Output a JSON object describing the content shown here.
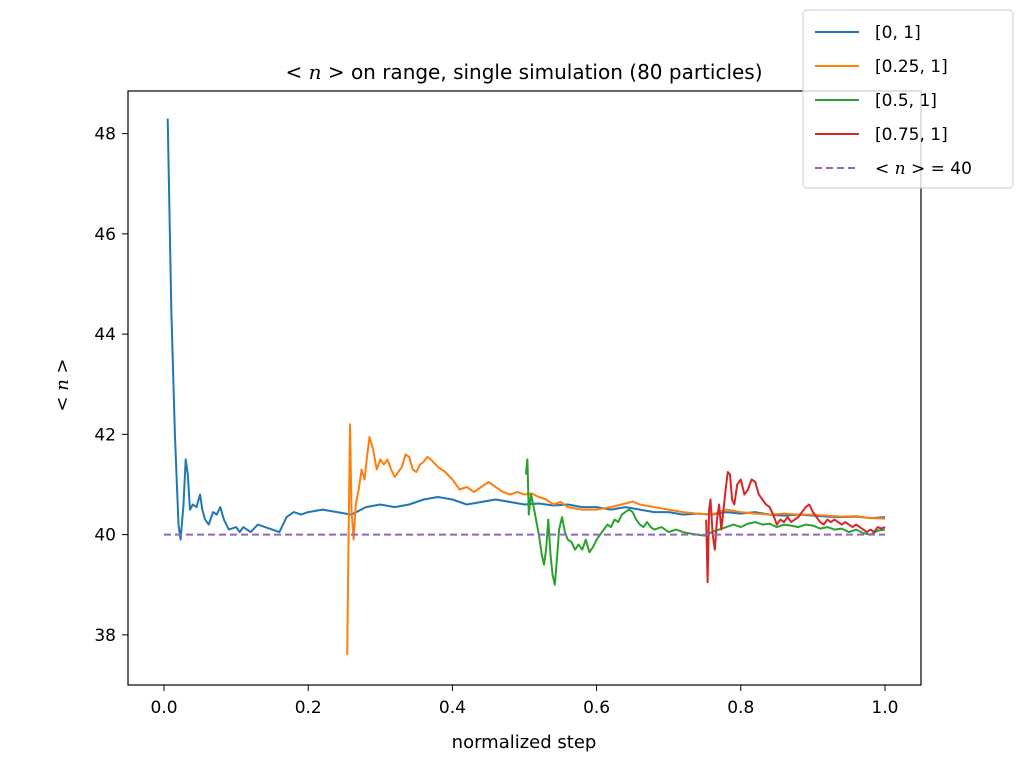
{
  "chart_data": {
    "type": "line",
    "title": {
      "pre": "< ",
      "var": "n",
      "post": " >  on range, single simulation (80 particles)"
    },
    "xlabel": "normalized step",
    "ylabel": {
      "pre": "< ",
      "var": "n",
      "post": " >"
    },
    "xlim": [
      -0.05,
      1.05
    ],
    "ylim": [
      37.0,
      48.85
    ],
    "xticks": [
      0.0,
      0.2,
      0.4,
      0.6,
      0.8,
      1.0
    ],
    "xtick_labels": [
      "0.0",
      "0.2",
      "0.4",
      "0.6",
      "0.8",
      "1.0"
    ],
    "yticks": [
      38,
      40,
      42,
      44,
      46,
      48
    ],
    "ytick_labels": [
      "38",
      "40",
      "42",
      "44",
      "46",
      "48"
    ],
    "grid": false,
    "legend_position": "top-right (outside)",
    "series": [
      {
        "name": "[0, 1]",
        "color": "#1f77b4",
        "style": "solid",
        "points": [
          [
            0.005,
            48.3
          ],
          [
            0.01,
            44.5
          ],
          [
            0.015,
            42.0
          ],
          [
            0.02,
            40.2
          ],
          [
            0.023,
            39.9
          ],
          [
            0.027,
            40.6
          ],
          [
            0.03,
            41.5
          ],
          [
            0.033,
            41.2
          ],
          [
            0.036,
            40.5
          ],
          [
            0.04,
            40.6
          ],
          [
            0.045,
            40.55
          ],
          [
            0.05,
            40.8
          ],
          [
            0.053,
            40.5
          ],
          [
            0.057,
            40.3
          ],
          [
            0.062,
            40.2
          ],
          [
            0.068,
            40.45
          ],
          [
            0.073,
            40.4
          ],
          [
            0.078,
            40.55
          ],
          [
            0.083,
            40.3
          ],
          [
            0.09,
            40.1
          ],
          [
            0.1,
            40.15
          ],
          [
            0.105,
            40.05
          ],
          [
            0.11,
            40.15
          ],
          [
            0.12,
            40.05
          ],
          [
            0.13,
            40.2
          ],
          [
            0.14,
            40.15
          ],
          [
            0.15,
            40.1
          ],
          [
            0.16,
            40.05
          ],
          [
            0.17,
            40.35
          ],
          [
            0.18,
            40.45
          ],
          [
            0.19,
            40.4
          ],
          [
            0.2,
            40.45
          ],
          [
            0.22,
            40.5
          ],
          [
            0.24,
            40.45
          ],
          [
            0.26,
            40.4
          ],
          [
            0.28,
            40.55
          ],
          [
            0.3,
            40.6
          ],
          [
            0.32,
            40.55
          ],
          [
            0.34,
            40.6
          ],
          [
            0.36,
            40.7
          ],
          [
            0.38,
            40.75
          ],
          [
            0.4,
            40.7
          ],
          [
            0.42,
            40.6
          ],
          [
            0.44,
            40.65
          ],
          [
            0.46,
            40.7
          ],
          [
            0.48,
            40.65
          ],
          [
            0.5,
            40.6
          ],
          [
            0.52,
            40.62
          ],
          [
            0.54,
            40.58
          ],
          [
            0.56,
            40.6
          ],
          [
            0.58,
            40.55
          ],
          [
            0.6,
            40.55
          ],
          [
            0.62,
            40.5
          ],
          [
            0.64,
            40.55
          ],
          [
            0.66,
            40.5
          ],
          [
            0.68,
            40.45
          ],
          [
            0.7,
            40.45
          ],
          [
            0.72,
            40.4
          ],
          [
            0.74,
            40.42
          ],
          [
            0.76,
            40.4
          ],
          [
            0.78,
            40.45
          ],
          [
            0.8,
            40.42
          ],
          [
            0.82,
            40.45
          ],
          [
            0.84,
            40.4
          ],
          [
            0.86,
            40.38
          ],
          [
            0.88,
            40.4
          ],
          [
            0.9,
            40.38
          ],
          [
            0.92,
            40.36
          ],
          [
            0.94,
            40.35
          ],
          [
            0.96,
            40.36
          ],
          [
            0.98,
            40.33
          ],
          [
            1.0,
            40.35
          ]
        ]
      },
      {
        "name": "[0.25, 1]",
        "color": "#ff7f0e",
        "style": "solid",
        "points": [
          [
            0.254,
            37.6
          ],
          [
            0.256,
            40.0
          ],
          [
            0.258,
            42.2
          ],
          [
            0.26,
            40.5
          ],
          [
            0.263,
            39.9
          ],
          [
            0.266,
            40.6
          ],
          [
            0.27,
            40.9
          ],
          [
            0.274,
            41.3
          ],
          [
            0.278,
            41.1
          ],
          [
            0.282,
            41.6
          ],
          [
            0.285,
            41.95
          ],
          [
            0.29,
            41.7
          ],
          [
            0.295,
            41.3
          ],
          [
            0.3,
            41.5
          ],
          [
            0.305,
            41.4
          ],
          [
            0.31,
            41.5
          ],
          [
            0.315,
            41.3
          ],
          [
            0.32,
            41.15
          ],
          [
            0.325,
            41.25
          ],
          [
            0.33,
            41.35
          ],
          [
            0.335,
            41.6
          ],
          [
            0.34,
            41.55
          ],
          [
            0.345,
            41.3
          ],
          [
            0.35,
            41.25
          ],
          [
            0.355,
            41.4
          ],
          [
            0.36,
            41.45
          ],
          [
            0.365,
            41.55
          ],
          [
            0.37,
            41.5
          ],
          [
            0.38,
            41.35
          ],
          [
            0.39,
            41.25
          ],
          [
            0.4,
            41.1
          ],
          [
            0.41,
            40.9
          ],
          [
            0.42,
            40.95
          ],
          [
            0.43,
            40.85
          ],
          [
            0.44,
            40.95
          ],
          [
            0.45,
            41.05
          ],
          [
            0.46,
            40.95
          ],
          [
            0.47,
            40.85
          ],
          [
            0.48,
            40.8
          ],
          [
            0.49,
            40.85
          ],
          [
            0.5,
            40.8
          ],
          [
            0.51,
            40.82
          ],
          [
            0.52,
            40.75
          ],
          [
            0.53,
            40.7
          ],
          [
            0.54,
            40.6
          ],
          [
            0.55,
            40.65
          ],
          [
            0.56,
            40.55
          ],
          [
            0.58,
            40.5
          ],
          [
            0.6,
            40.5
          ],
          [
            0.62,
            40.55
          ],
          [
            0.64,
            40.62
          ],
          [
            0.65,
            40.66
          ],
          [
            0.66,
            40.6
          ],
          [
            0.68,
            40.55
          ],
          [
            0.7,
            40.5
          ],
          [
            0.72,
            40.45
          ],
          [
            0.74,
            40.42
          ],
          [
            0.76,
            40.4
          ],
          [
            0.78,
            40.5
          ],
          [
            0.8,
            40.45
          ],
          [
            0.82,
            40.42
          ],
          [
            0.84,
            40.4
          ],
          [
            0.86,
            40.42
          ],
          [
            0.88,
            40.4
          ],
          [
            0.9,
            40.4
          ],
          [
            0.92,
            40.38
          ],
          [
            0.94,
            40.36
          ],
          [
            0.96,
            40.37
          ],
          [
            0.98,
            40.33
          ],
          [
            1.0,
            40.32
          ]
        ]
      },
      {
        "name": "[0.5, 1]",
        "color": "#2ca02c",
        "style": "solid",
        "points": [
          [
            0.502,
            41.2
          ],
          [
            0.504,
            41.5
          ],
          [
            0.506,
            40.4
          ],
          [
            0.509,
            40.8
          ],
          [
            0.512,
            40.6
          ],
          [
            0.516,
            40.3
          ],
          [
            0.52,
            40.0
          ],
          [
            0.524,
            39.6
          ],
          [
            0.527,
            39.4
          ],
          [
            0.53,
            39.7
          ],
          [
            0.533,
            40.3
          ],
          [
            0.536,
            39.6
          ],
          [
            0.539,
            39.2
          ],
          [
            0.542,
            39.0
          ],
          [
            0.545,
            39.5
          ],
          [
            0.548,
            40.1
          ],
          [
            0.552,
            40.35
          ],
          [
            0.556,
            40.05
          ],
          [
            0.56,
            39.9
          ],
          [
            0.565,
            39.85
          ],
          [
            0.57,
            39.7
          ],
          [
            0.575,
            39.8
          ],
          [
            0.58,
            39.7
          ],
          [
            0.585,
            39.9
          ],
          [
            0.59,
            39.65
          ],
          [
            0.595,
            39.75
          ],
          [
            0.6,
            39.9
          ],
          [
            0.605,
            40.0
          ],
          [
            0.61,
            40.1
          ],
          [
            0.615,
            40.2
          ],
          [
            0.62,
            40.15
          ],
          [
            0.625,
            40.3
          ],
          [
            0.63,
            40.25
          ],
          [
            0.635,
            40.4
          ],
          [
            0.64,
            40.45
          ],
          [
            0.645,
            40.5
          ],
          [
            0.65,
            40.45
          ],
          [
            0.655,
            40.3
          ],
          [
            0.66,
            40.2
          ],
          [
            0.665,
            40.15
          ],
          [
            0.67,
            40.25
          ],
          [
            0.675,
            40.15
          ],
          [
            0.68,
            40.1
          ],
          [
            0.69,
            40.15
          ],
          [
            0.7,
            40.05
          ],
          [
            0.71,
            40.1
          ],
          [
            0.72,
            40.05
          ],
          [
            0.73,
            40.02
          ],
          [
            0.74,
            40.0
          ],
          [
            0.75,
            39.98
          ],
          [
            0.76,
            40.05
          ],
          [
            0.77,
            40.1
          ],
          [
            0.78,
            40.15
          ],
          [
            0.79,
            40.2
          ],
          [
            0.8,
            40.15
          ],
          [
            0.81,
            40.22
          ],
          [
            0.82,
            40.25
          ],
          [
            0.83,
            40.2
          ],
          [
            0.84,
            40.22
          ],
          [
            0.85,
            40.15
          ],
          [
            0.86,
            40.2
          ],
          [
            0.87,
            40.18
          ],
          [
            0.88,
            40.15
          ],
          [
            0.89,
            40.2
          ],
          [
            0.9,
            40.18
          ],
          [
            0.91,
            40.12
          ],
          [
            0.92,
            40.15
          ],
          [
            0.93,
            40.1
          ],
          [
            0.94,
            40.12
          ],
          [
            0.95,
            40.05
          ],
          [
            0.96,
            40.1
          ],
          [
            0.97,
            40.03
          ],
          [
            0.98,
            40.0
          ],
          [
            0.99,
            40.08
          ],
          [
            1.0,
            40.1
          ]
        ]
      },
      {
        "name": "[0.75, 1]",
        "color": "#d62728",
        "style": "solid",
        "points": [
          [
            0.752,
            40.3
          ],
          [
            0.754,
            39.05
          ],
          [
            0.756,
            40.5
          ],
          [
            0.758,
            40.7
          ],
          [
            0.761,
            40.0
          ],
          [
            0.764,
            39.7
          ],
          [
            0.767,
            40.3
          ],
          [
            0.77,
            40.6
          ],
          [
            0.773,
            40.1
          ],
          [
            0.776,
            40.5
          ],
          [
            0.779,
            40.9
          ],
          [
            0.782,
            41.25
          ],
          [
            0.785,
            41.2
          ],
          [
            0.788,
            40.7
          ],
          [
            0.791,
            40.6
          ],
          [
            0.795,
            41.0
          ],
          [
            0.8,
            41.1
          ],
          [
            0.805,
            40.8
          ],
          [
            0.81,
            40.9
          ],
          [
            0.815,
            41.1
          ],
          [
            0.82,
            41.05
          ],
          [
            0.825,
            40.8
          ],
          [
            0.83,
            40.7
          ],
          [
            0.835,
            40.6
          ],
          [
            0.84,
            40.55
          ],
          [
            0.845,
            40.4
          ],
          [
            0.85,
            40.2
          ],
          [
            0.855,
            40.3
          ],
          [
            0.86,
            40.25
          ],
          [
            0.865,
            40.35
          ],
          [
            0.87,
            40.25
          ],
          [
            0.875,
            40.3
          ],
          [
            0.88,
            40.35
          ],
          [
            0.885,
            40.45
          ],
          [
            0.89,
            40.55
          ],
          [
            0.895,
            40.6
          ],
          [
            0.9,
            40.45
          ],
          [
            0.905,
            40.35
          ],
          [
            0.91,
            40.25
          ],
          [
            0.915,
            40.2
          ],
          [
            0.92,
            40.3
          ],
          [
            0.925,
            40.25
          ],
          [
            0.93,
            40.3
          ],
          [
            0.935,
            40.25
          ],
          [
            0.94,
            40.2
          ],
          [
            0.945,
            40.25
          ],
          [
            0.95,
            40.2
          ],
          [
            0.955,
            40.15
          ],
          [
            0.96,
            40.2
          ],
          [
            0.965,
            40.15
          ],
          [
            0.97,
            40.1
          ],
          [
            0.975,
            40.05
          ],
          [
            0.98,
            40.1
          ],
          [
            0.985,
            40.05
          ],
          [
            0.99,
            40.15
          ],
          [
            0.995,
            40.12
          ],
          [
            1.0,
            40.15
          ]
        ]
      },
      {
        "name": "< n > = 40",
        "legend_label": {
          "pre": "< ",
          "var": "n",
          "post": " > = 40"
        },
        "color": "#9467bd",
        "style": "dashed",
        "points": [
          [
            0.0,
            40
          ],
          [
            1.0,
            40
          ]
        ]
      }
    ]
  }
}
